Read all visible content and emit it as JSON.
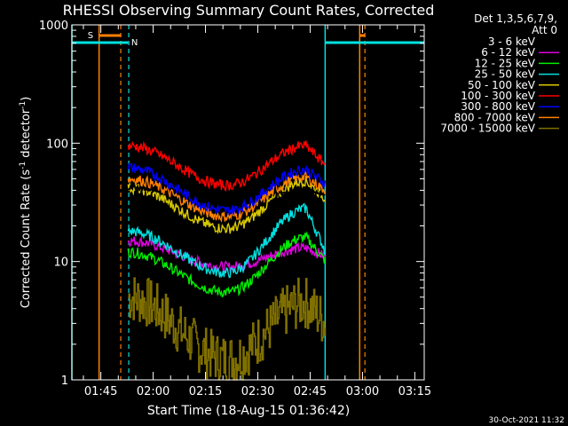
{
  "chart_data": {
    "type": "line",
    "title": "RHESSI Observing Summary Count Rates, Corrected",
    "xlabel": "Start Time (18-Aug-15 01:36:42)",
    "ylabel_main": "Corrected Count Rate (s",
    "ylabel_sup1": "-1",
    "ylabel_mid": " detector",
    "ylabel_sup2": "-1",
    "ylabel_end": ")",
    "yscale": "log",
    "ylim": [
      1,
      1000
    ],
    "xlim_min": [
      0,
      101
    ],
    "y_ticks": [
      "1",
      "10",
      "100",
      "1000"
    ],
    "x_ticks": [
      {
        "t": 8.3,
        "label": "01:45"
      },
      {
        "t": 23.3,
        "label": "02:00"
      },
      {
        "t": 38.3,
        "label": "02:15"
      },
      {
        "t": 53.3,
        "label": "02:30"
      },
      {
        "t": 68.3,
        "label": "02:45"
      },
      {
        "t": 83.3,
        "label": "03:00"
      },
      {
        "t": 98.3,
        "label": "03:15"
      }
    ],
    "legend_header": [
      "Det 1,3,5,6,7,9,",
      "Att 0"
    ],
    "legend_position": "right",
    "data_window_min": [
      16.1,
      72.8
    ],
    "series": [
      {
        "name": "3 - 6 keV",
        "color": "#000000",
        "levels": [
          42,
          38,
          38,
          38
        ]
      },
      {
        "name": "6 - 12 keV",
        "color": "#e000e0",
        "levels": [
          15,
          9,
          13,
          11
        ]
      },
      {
        "name": "12 - 25 keV",
        "color": "#00ee00",
        "levels": [
          12,
          5.5,
          16,
          10
        ]
      },
      {
        "name": "25 - 50 keV",
        "color": "#00e0e0",
        "levels": [
          18,
          8,
          28,
          12
        ]
      },
      {
        "name": "50 - 100 keV",
        "color": "#d8c800",
        "levels": [
          42,
          19,
          48,
          34
        ]
      },
      {
        "name": "100 - 300 keV",
        "color": "#ff0000",
        "levels": [
          95,
          44,
          95,
          65
        ]
      },
      {
        "name": "300 - 800 keV",
        "color": "#0000ff",
        "levels": [
          62,
          27,
          60,
          45
        ]
      },
      {
        "name": "800 - 7000 keV",
        "color": "#ff8000",
        "levels": [
          50,
          24,
          52,
          40
        ]
      },
      {
        "name": "7000 - 15000 keV",
        "color": "#807000",
        "levels": [
          5,
          1.5,
          4.5,
          3
        ]
      }
    ],
    "markers": [
      {
        "label": "S",
        "color": "#ff8000",
        "t": 7.8,
        "t2": 15.0,
        "dashed_t": 14.0,
        "end_t": 82.5,
        "end_dashed_t": 84.0
      },
      {
        "label": "N",
        "color": "#00e0e0",
        "t": 0,
        "t2": 16.0,
        "dashed_t": 16.3,
        "end_t": 72.6,
        "end_dashed_t": 101
      }
    ],
    "timestamp": "30-Oct-2021 11:32"
  }
}
